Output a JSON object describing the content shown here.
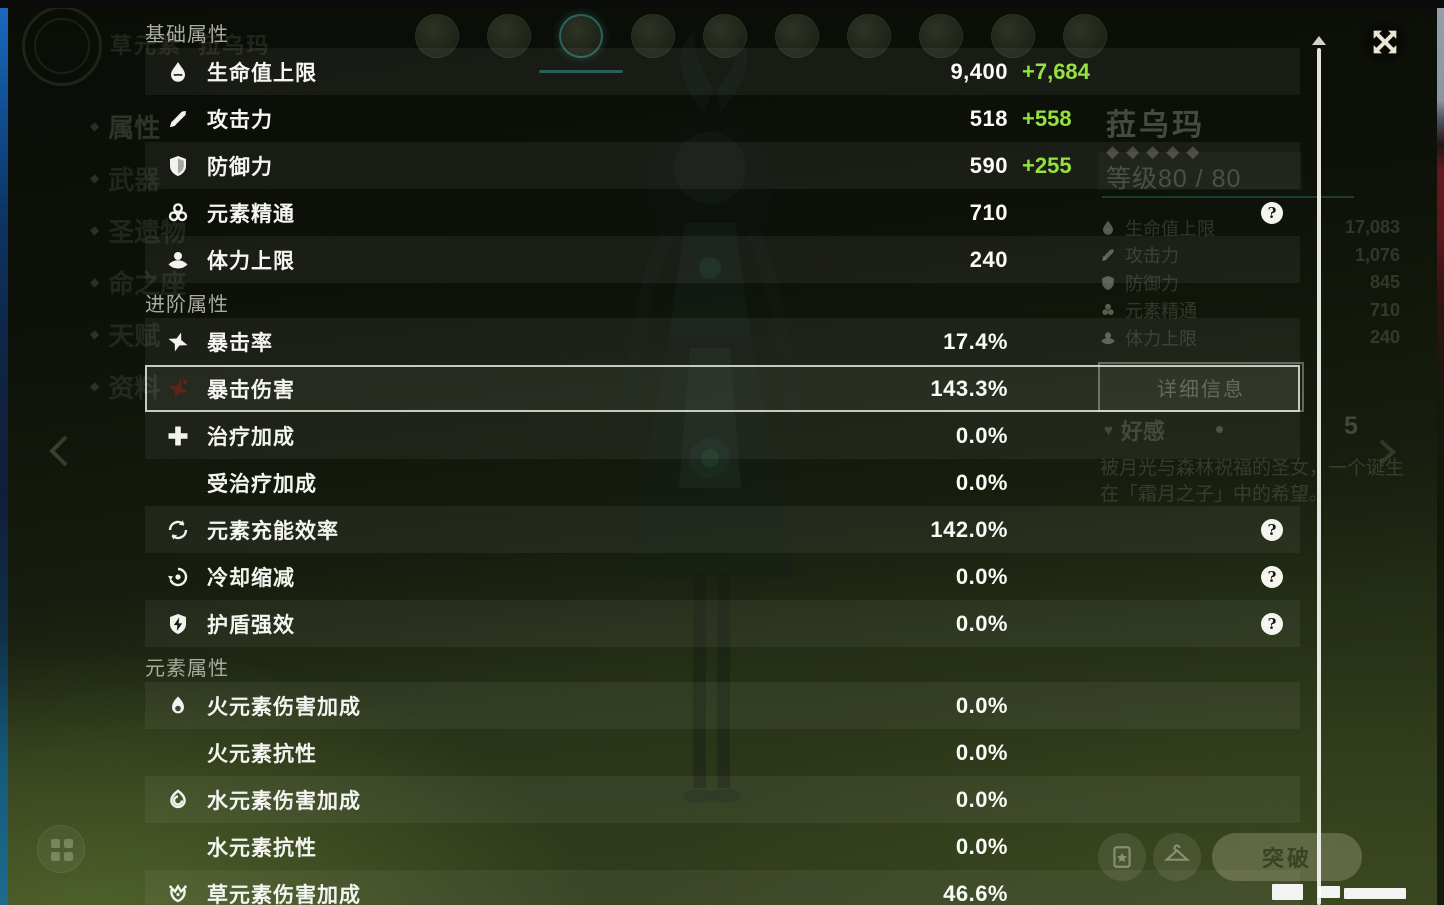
{
  "panel": {
    "help_glyph": "?",
    "sections": [
      {
        "title": "基础属性",
        "rows": [
          {
            "icon": "hp-icon",
            "label": "生命值上限",
            "value": "9,400",
            "bonus": "+7,684"
          },
          {
            "icon": "atk-icon",
            "label": "攻击力",
            "value": "518",
            "bonus": "+558"
          },
          {
            "icon": "def-icon",
            "label": "防御力",
            "value": "590",
            "bonus": "+255"
          },
          {
            "icon": "em-icon",
            "label": "元素精通",
            "value": "710",
            "help": true
          },
          {
            "icon": "stamina-icon",
            "label": "体力上限",
            "value": "240"
          }
        ]
      },
      {
        "title": "进阶属性",
        "rows": [
          {
            "icon": "crit-rate-icon",
            "label": "暴击率",
            "value": "17.4%"
          },
          {
            "icon": "crit-dmg-icon",
            "label": "暴击伤害",
            "value": "143.3%",
            "selected": true
          },
          {
            "icon": "healing-bonus-icon",
            "label": "治疗加成",
            "value": "0.0%"
          },
          {
            "icon": "",
            "label": "受治疗加成",
            "value": "0.0%"
          },
          {
            "icon": "energy-recharge-icon",
            "label": "元素充能效率",
            "value": "142.0%",
            "help": true
          },
          {
            "icon": "cd-reduction-icon",
            "label": "冷却缩减",
            "value": "0.0%",
            "help": true
          },
          {
            "icon": "shield-strength-icon",
            "label": "护盾强效",
            "value": "0.0%",
            "help": true
          }
        ]
      },
      {
        "title": "元素属性",
        "rows": [
          {
            "icon": "pyro-icon",
            "label": "火元素伤害加成",
            "value": "0.0%"
          },
          {
            "icon": "",
            "label": "火元素抗性",
            "value": "0.0%"
          },
          {
            "icon": "hydro-icon",
            "label": "水元素伤害加成",
            "value": "0.0%"
          },
          {
            "icon": "",
            "label": "水元素抗性",
            "value": "0.0%"
          },
          {
            "icon": "dendro-icon",
            "label": "草元素伤害加成",
            "value": "46.6%"
          }
        ]
      }
    ]
  },
  "background": {
    "element_label": "草元素",
    "party_avatar_count": 10,
    "selected_avatar_index": 2,
    "sidebar_items": [
      {
        "label": "属性",
        "selected": true
      },
      {
        "label": "武器"
      },
      {
        "label": "圣遗物"
      },
      {
        "label": "命之座"
      },
      {
        "label": "天赋"
      },
      {
        "label": "资料"
      }
    ],
    "character": {
      "name": "菈乌玛",
      "stars": 5,
      "level_label": "等级80 / 80"
    },
    "mini_stats": [
      {
        "icon": "hp-icon",
        "label": "生命值上限",
        "value": "17,083"
      },
      {
        "icon": "atk-icon",
        "label": "攻击力",
        "value": "1,076"
      },
      {
        "icon": "def-icon",
        "label": "防御力",
        "value": "845"
      },
      {
        "icon": "em-icon",
        "label": "元素精通",
        "value": "710"
      },
      {
        "icon": "stamina-icon",
        "label": "体力上限",
        "value": "240"
      }
    ],
    "detail_button_label": "详细信息",
    "friendship": {
      "label": "好感",
      "value": "5"
    },
    "description_lines": [
      "被月光与森林祝福的圣女，一个诞生",
      "在「霜月之子」中的希望。"
    ],
    "ascend_button_label": "突破",
    "glyphs": {
      "star": "◆",
      "diamond": "◆",
      "heart": "♥"
    }
  }
}
